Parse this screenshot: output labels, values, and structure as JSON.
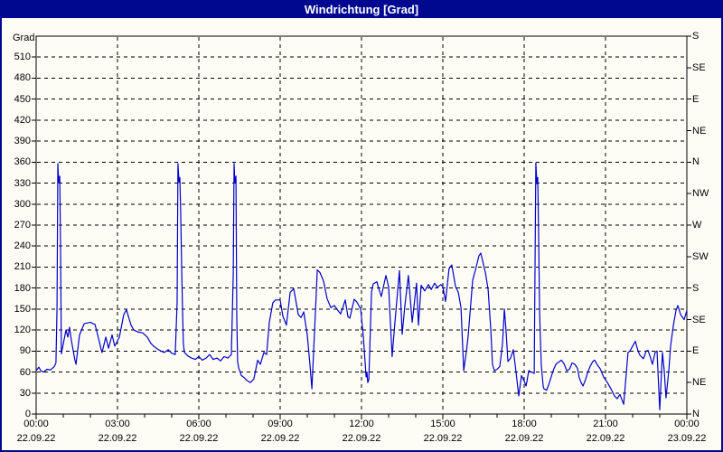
{
  "titlebar": {
    "title": "Windrichtung [Grad]"
  },
  "colors": {
    "titlebar_bg": "#000890",
    "titlebar_text": "#ffffff",
    "frame": "#000890",
    "background": "#fdfdf6",
    "plot_border": "#000000",
    "grid": "#000000",
    "line": "#0000cc"
  },
  "chart_data": {
    "type": "line",
    "title": "Windrichtung [Grad]",
    "ylabel": "Grad",
    "ylim": [
      0,
      540
    ],
    "xlim_hours": [
      0,
      24
    ],
    "grid": "dashed",
    "y_ticks": [
      0,
      30,
      60,
      90,
      120,
      150,
      180,
      210,
      240,
      270,
      300,
      330,
      360,
      390,
      420,
      450,
      480,
      510
    ],
    "right_axis_labels": [
      {
        "value": 0,
        "label": "N"
      },
      {
        "value": 45,
        "label": "NE"
      },
      {
        "value": 90,
        "label": "E"
      },
      {
        "value": 135,
        "label": "SE"
      },
      {
        "value": 180,
        "label": "S"
      },
      {
        "value": 225,
        "label": "SW"
      },
      {
        "value": 270,
        "label": "W"
      },
      {
        "value": 315,
        "label": "NW"
      },
      {
        "value": 360,
        "label": "N"
      },
      {
        "value": 405,
        "label": "NE"
      },
      {
        "value": 450,
        "label": "E"
      },
      {
        "value": 495,
        "label": "SE"
      },
      {
        "value": 540,
        "label": "S"
      }
    ],
    "x_ticks": [
      {
        "hour": 0,
        "time": "00:00",
        "date": "22.09.22"
      },
      {
        "hour": 3,
        "time": "03:00",
        "date": "22.09.22"
      },
      {
        "hour": 6,
        "time": "06:00",
        "date": "22.09.22"
      },
      {
        "hour": 9,
        "time": "09:00",
        "date": "22.09.22"
      },
      {
        "hour": 12,
        "time": "12:00",
        "date": "22.09.22"
      },
      {
        "hour": 15,
        "time": "15:00",
        "date": "22.09.22"
      },
      {
        "hour": 18,
        "time": "18:00",
        "date": "22.09.22"
      },
      {
        "hour": 21,
        "time": "21:00",
        "date": "22.09.22"
      },
      {
        "hour": 24,
        "time": "00:00",
        "date": "23.09.22"
      }
    ],
    "minor_x_tick_every_hours": 1,
    "series": [
      {
        "name": "Windrichtung",
        "color": "#0000cc",
        "points": [
          [
            0,
            62
          ],
          [
            0.1,
            67
          ],
          [
            0.17,
            62
          ],
          [
            0.27,
            60
          ],
          [
            0.4,
            64
          ],
          [
            0.53,
            63
          ],
          [
            0.67,
            68
          ],
          [
            0.73,
            73
          ],
          [
            0.77,
            152
          ],
          [
            0.8,
            358
          ],
          [
            0.83,
            331
          ],
          [
            0.87,
            340
          ],
          [
            0.9,
            240
          ],
          [
            0.93,
            86
          ],
          [
            1.1,
            120
          ],
          [
            1.17,
            110
          ],
          [
            1.23,
            124
          ],
          [
            1.3,
            105
          ],
          [
            1.43,
            77
          ],
          [
            1.47,
            71
          ],
          [
            1.6,
            113
          ],
          [
            1.77,
            129
          ],
          [
            2,
            131
          ],
          [
            2.17,
            128
          ],
          [
            2.27,
            113
          ],
          [
            2.4,
            92
          ],
          [
            2.43,
            88
          ],
          [
            2.57,
            110
          ],
          [
            2.67,
            94
          ],
          [
            2.8,
            113
          ],
          [
            2.9,
            97
          ],
          [
            3.07,
            110
          ],
          [
            3.23,
            142
          ],
          [
            3.33,
            149
          ],
          [
            3.5,
            127
          ],
          [
            3.6,
            120
          ],
          [
            3.77,
            117
          ],
          [
            3.93,
            116
          ],
          [
            4.1,
            110
          ],
          [
            4.23,
            101
          ],
          [
            4.33,
            97
          ],
          [
            4.47,
            93
          ],
          [
            4.6,
            90
          ],
          [
            4.73,
            88
          ],
          [
            4.87,
            92
          ],
          [
            5,
            87
          ],
          [
            5.13,
            85
          ],
          [
            5.2,
            160
          ],
          [
            5.23,
            358
          ],
          [
            5.27,
            331
          ],
          [
            5.3,
            338
          ],
          [
            5.33,
            290
          ],
          [
            5.37,
            204
          ],
          [
            5.4,
            148
          ],
          [
            5.43,
            100
          ],
          [
            5.47,
            88
          ],
          [
            5.6,
            83
          ],
          [
            5.73,
            80
          ],
          [
            5.87,
            78
          ],
          [
            6,
            82
          ],
          [
            6.13,
            77
          ],
          [
            6.27,
            80
          ],
          [
            6.4,
            85
          ],
          [
            6.53,
            78
          ],
          [
            6.67,
            80
          ],
          [
            6.8,
            76
          ],
          [
            6.93,
            82
          ],
          [
            7.07,
            80
          ],
          [
            7.2,
            85
          ],
          [
            7.27,
            200
          ],
          [
            7.3,
            358
          ],
          [
            7.33,
            330
          ],
          [
            7.37,
            340
          ],
          [
            7.4,
            139
          ],
          [
            7.43,
            75
          ],
          [
            7.47,
            66
          ],
          [
            7.57,
            55
          ],
          [
            7.67,
            52
          ],
          [
            7.77,
            48
          ],
          [
            7.9,
            45
          ],
          [
            8.03,
            50
          ],
          [
            8.17,
            77
          ],
          [
            8.27,
            71
          ],
          [
            8.4,
            88
          ],
          [
            8.5,
            85
          ],
          [
            8.6,
            131
          ],
          [
            8.73,
            159
          ],
          [
            8.83,
            163
          ],
          [
            9,
            163
          ],
          [
            9.1,
            140
          ],
          [
            9.23,
            127
          ],
          [
            9.37,
            174
          ],
          [
            9.5,
            179
          ],
          [
            9.67,
            142
          ],
          [
            9.77,
            138
          ],
          [
            9.87,
            146
          ],
          [
            10,
            113
          ],
          [
            10.1,
            70
          ],
          [
            10.17,
            36
          ],
          [
            10.27,
            120
          ],
          [
            10.37,
            206
          ],
          [
            10.47,
            202
          ],
          [
            10.6,
            190
          ],
          [
            10.73,
            165
          ],
          [
            10.87,
            152
          ],
          [
            11,
            155
          ],
          [
            11.13,
            148
          ],
          [
            11.23,
            143
          ],
          [
            11.4,
            163
          ],
          [
            11.5,
            139
          ],
          [
            11.57,
            137
          ],
          [
            11.73,
            164
          ],
          [
            11.83,
            160
          ],
          [
            11.97,
            150
          ],
          [
            12.07,
            110
          ],
          [
            12.17,
            53
          ],
          [
            12.2,
            60
          ],
          [
            12.23,
            45
          ],
          [
            12.27,
            49
          ],
          [
            12.37,
            174
          ],
          [
            12.43,
            186
          ],
          [
            12.57,
            189
          ],
          [
            12.63,
            180
          ],
          [
            12.73,
            168
          ],
          [
            12.9,
            198
          ],
          [
            13,
            182
          ],
          [
            13.13,
            82
          ],
          [
            13.23,
            130
          ],
          [
            13.4,
            205
          ],
          [
            13.5,
            114
          ],
          [
            13.6,
            155
          ],
          [
            13.67,
            178
          ],
          [
            13.73,
            198
          ],
          [
            13.87,
            131
          ],
          [
            14.03,
            187
          ],
          [
            14.1,
            127
          ],
          [
            14.2,
            184
          ],
          [
            14.33,
            176
          ],
          [
            14.47,
            185
          ],
          [
            14.57,
            178
          ],
          [
            14.7,
            187
          ],
          [
            14.8,
            181
          ],
          [
            14.93,
            185
          ],
          [
            15,
            182
          ],
          [
            15.1,
            161
          ],
          [
            15.23,
            208
          ],
          [
            15.33,
            213
          ],
          [
            15.47,
            182
          ],
          [
            15.57,
            174
          ],
          [
            15.67,
            152
          ],
          [
            15.77,
            62
          ],
          [
            15.87,
            90
          ],
          [
            15.93,
            110
          ],
          [
            16.1,
            191
          ],
          [
            16.23,
            210
          ],
          [
            16.33,
            226
          ],
          [
            16.4,
            230
          ],
          [
            16.57,
            202
          ],
          [
            16.67,
            178
          ],
          [
            16.77,
            120
          ],
          [
            16.83,
            71
          ],
          [
            16.9,
            62
          ],
          [
            17,
            64
          ],
          [
            17.1,
            68
          ],
          [
            17.2,
            100
          ],
          [
            17.27,
            150
          ],
          [
            17.33,
            120
          ],
          [
            17.4,
            75
          ],
          [
            17.5,
            80
          ],
          [
            17.6,
            92
          ],
          [
            17.7,
            60
          ],
          [
            17.8,
            26
          ],
          [
            17.9,
            55
          ],
          [
            18,
            47
          ],
          [
            18.07,
            40
          ],
          [
            18.17,
            62
          ],
          [
            18.27,
            60
          ],
          [
            18.37,
            58
          ],
          [
            18.43,
            359
          ],
          [
            18.47,
            329
          ],
          [
            18.5,
            338
          ],
          [
            18.53,
            265
          ],
          [
            18.57,
            143
          ],
          [
            18.63,
            71
          ],
          [
            18.7,
            40
          ],
          [
            18.73,
            36
          ],
          [
            18.83,
            34
          ],
          [
            18.93,
            45
          ],
          [
            19.07,
            62
          ],
          [
            19.17,
            71
          ],
          [
            19.27,
            74
          ],
          [
            19.37,
            77
          ],
          [
            19.47,
            72
          ],
          [
            19.57,
            62
          ],
          [
            19.67,
            64
          ],
          [
            19.77,
            73
          ],
          [
            19.87,
            71
          ],
          [
            19.97,
            65
          ],
          [
            20.03,
            52
          ],
          [
            20.1,
            45
          ],
          [
            20.17,
            40
          ],
          [
            20.27,
            50
          ],
          [
            20.33,
            58
          ],
          [
            20.43,
            68
          ],
          [
            20.53,
            75
          ],
          [
            20.6,
            77
          ],
          [
            20.7,
            70
          ],
          [
            20.8,
            65
          ],
          [
            20.93,
            53
          ],
          [
            21.07,
            45
          ],
          [
            21.2,
            36
          ],
          [
            21.33,
            26
          ],
          [
            21.43,
            22
          ],
          [
            21.53,
            28
          ],
          [
            21.67,
            14
          ],
          [
            21.77,
            60
          ],
          [
            21.83,
            88
          ],
          [
            21.9,
            90
          ],
          [
            22,
            97
          ],
          [
            22.1,
            104
          ],
          [
            22.2,
            90
          ],
          [
            22.27,
            84
          ],
          [
            22.4,
            79
          ],
          [
            22.5,
            90
          ],
          [
            22.57,
            91
          ],
          [
            22.67,
            79
          ],
          [
            22.73,
            71
          ],
          [
            22.83,
            88
          ],
          [
            22.9,
            90
          ],
          [
            23,
            6
          ],
          [
            23.1,
            88
          ],
          [
            23.17,
            60
          ],
          [
            23.23,
            23
          ],
          [
            23.33,
            60
          ],
          [
            23.4,
            97
          ],
          [
            23.5,
            126
          ],
          [
            23.6,
            148
          ],
          [
            23.67,
            155
          ],
          [
            23.77,
            142
          ],
          [
            23.9,
            135
          ],
          [
            24,
            148
          ]
        ]
      }
    ]
  }
}
